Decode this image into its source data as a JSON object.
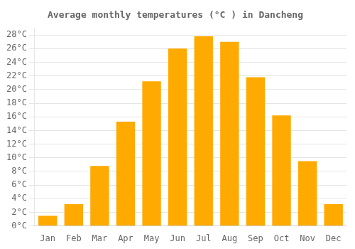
{
  "chart_data": {
    "type": "bar",
    "title": "Average monthly temperatures (°C ) in Dancheng",
    "categories": [
      "Jan",
      "Feb",
      "Mar",
      "Apr",
      "May",
      "Jun",
      "Jul",
      "Aug",
      "Sep",
      "Oct",
      "Nov",
      "Dec"
    ],
    "values": [
      1.5,
      3.2,
      8.8,
      15.3,
      21.2,
      26.0,
      27.8,
      27.0,
      21.8,
      16.2,
      9.5,
      3.2
    ],
    "color": "#FFAA00",
    "ylim": [
      0,
      29
    ],
    "yticks": [
      {
        "value": 0,
        "label": "0°C"
      },
      {
        "value": 2,
        "label": "2°C"
      },
      {
        "value": 4,
        "label": "4°C"
      },
      {
        "value": 6,
        "label": "6°C"
      },
      {
        "value": 8,
        "label": "8°C"
      },
      {
        "value": 10,
        "label": "10°C"
      },
      {
        "value": 12,
        "label": "12°C"
      },
      {
        "value": 14,
        "label": "14°C"
      },
      {
        "value": 16,
        "label": "16°C"
      },
      {
        "value": 18,
        "label": "18°C"
      },
      {
        "value": 20,
        "label": "20°C"
      },
      {
        "value": 22,
        "label": "22°C"
      },
      {
        "value": 24,
        "label": "24°C"
      },
      {
        "value": 26,
        "label": "26°C"
      },
      {
        "value": 28,
        "label": "28°C"
      }
    ],
    "grid": true
  }
}
